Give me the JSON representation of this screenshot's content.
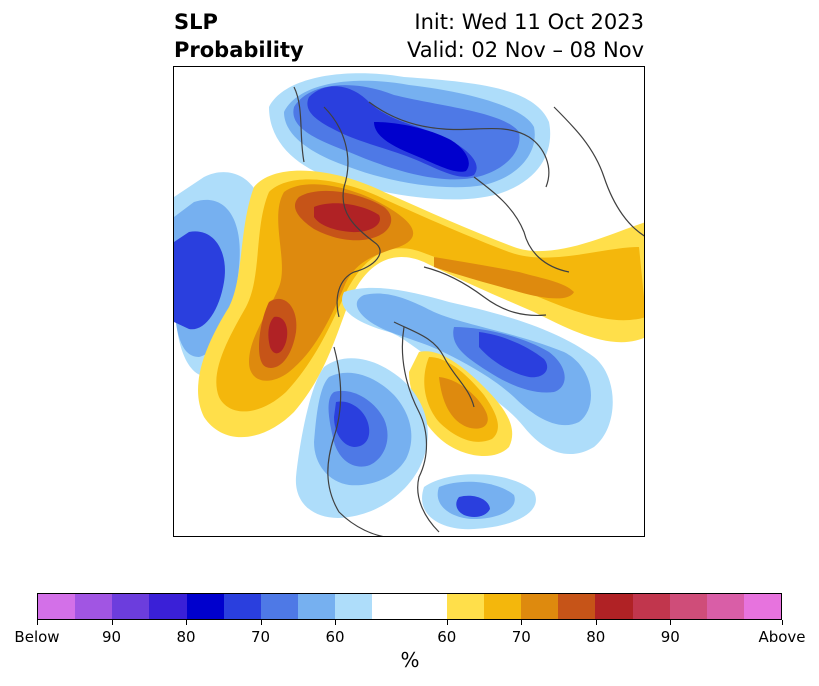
{
  "title": {
    "left_line1": "SLP",
    "left_line2": "Probability",
    "right_line1": "Init: Wed 11 Oct 2023",
    "right_line2": "Valid: 02 Nov – 08 Nov"
  },
  "map": {
    "projection": "polar stereographic (north)",
    "coastlines": "dark grey",
    "background": "#ffffff"
  },
  "colorbar": {
    "label": "%",
    "colors": [
      "#d370e8",
      "#a155e3",
      "#6c3ddd",
      "#3a20d7",
      "#0000cd",
      "#2a3fde",
      "#4e79e6",
      "#76b0f0",
      "#aeddfa",
      "#ffffff",
      "#ffffff",
      "#ffdf4a",
      "#f4b70c",
      "#de8a0e",
      "#c65418",
      "#b02225",
      "#c1364d",
      "#cf4d79",
      "#d95ea7",
      "#e773de"
    ],
    "tick_labels": [
      "Below",
      "90",
      "80",
      "70",
      "60",
      "60",
      "70",
      "80",
      "90",
      "Above"
    ]
  }
}
